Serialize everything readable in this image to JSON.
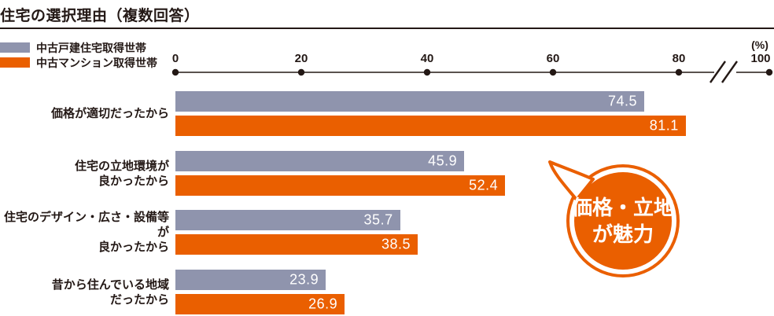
{
  "chart_data": {
    "type": "bar",
    "orientation": "horizontal",
    "title": "住宅の選択理由（複数回答）",
    "categories": [
      "価格が適切だったから",
      "住宅の立地環境が\n良かったから",
      "住宅のデザイン・広さ・設備等が\n良かったから",
      "昔から住んでいる地域\nだったから"
    ],
    "series": [
      {
        "name": "中古戸建住宅取得世帯",
        "color": "#8f94ad",
        "values": [
          74.5,
          45.9,
          35.7,
          23.9
        ]
      },
      {
        "name": "中古マンション取得世帯",
        "color": "#ea5f00",
        "values": [
          81.1,
          52.4,
          38.5,
          26.9
        ]
      }
    ],
    "xlim": [
      0,
      100
    ],
    "tick_labels": [
      "0",
      "20",
      "40",
      "60",
      "80",
      "100"
    ],
    "unit_label": "(%)",
    "axis_break_between": [
      80,
      100
    ],
    "legend_position": "top-left",
    "grid": false
  },
  "callout": {
    "text": "価格・立地\nが魅力",
    "color": "#ea5f00"
  },
  "colors": {
    "bar_gray": "#8f94ad",
    "bar_orange": "#ea5f00",
    "text_dark": "#231815",
    "value_text": "#ffffff"
  }
}
